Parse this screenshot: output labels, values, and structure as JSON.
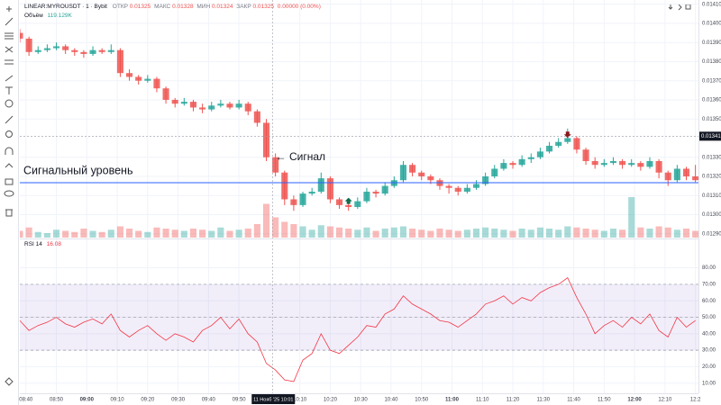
{
  "chart_data": {
    "type": "candlestick",
    "title": "LINEAR:MYROUSDT · 1 · Bybit",
    "legend": [
      {
        "label": "ОТКР",
        "value": 0.01325
      },
      {
        "label": "МАКС",
        "value": 0.01328
      },
      {
        "label": "МИН",
        "value": 0.01324
      },
      {
        "label": "ЗАКР",
        "value": 0.01325
      }
    ],
    "change": "0.00000 (0.00%)",
    "volume_label": "Объём",
    "volume_value": "119.129K",
    "up_color": "#26a69a",
    "down_color": "#ef5350",
    "x": [
      518,
      521,
      524,
      527,
      530,
      533,
      536,
      539,
      542,
      545,
      548,
      551,
      554,
      557,
      560,
      563,
      566,
      569,
      572,
      575,
      578,
      581,
      584,
      587,
      590,
      593,
      596,
      599,
      602,
      605,
      608,
      611,
      614,
      617,
      620,
      623,
      626,
      629,
      632,
      635,
      638,
      641,
      644,
      647,
      650,
      653,
      656,
      659,
      662,
      665,
      668,
      671,
      674,
      677,
      680,
      683,
      686,
      689,
      692,
      695,
      698,
      701,
      704,
      707,
      710,
      713,
      716,
      719,
      722,
      725,
      728,
      731,
      734,
      737,
      740
    ],
    "ohlc": [
      [
        0.01395,
        0.01397,
        0.0139,
        0.01392
      ],
      [
        0.01392,
        0.01393,
        0.01383,
        0.01385
      ],
      [
        0.01385,
        0.01388,
        0.01384,
        0.01386
      ],
      [
        0.01386,
        0.01389,
        0.01385,
        0.01387
      ],
      [
        0.01387,
        0.0139,
        0.01386,
        0.01388
      ],
      [
        0.01388,
        0.01389,
        0.01384,
        0.01386
      ],
      [
        0.01386,
        0.01387,
        0.01383,
        0.01385
      ],
      [
        0.01385,
        0.01386,
        0.01382,
        0.01384
      ],
      [
        0.01384,
        0.01388,
        0.01383,
        0.01386
      ],
      [
        0.01386,
        0.01387,
        0.01384,
        0.01385
      ],
      [
        0.01385,
        0.01389,
        0.01384,
        0.01386
      ],
      [
        0.01386,
        0.01387,
        0.01372,
        0.01374
      ],
      [
        0.01374,
        0.01376,
        0.0137,
        0.01372
      ],
      [
        0.01372,
        0.01373,
        0.01368,
        0.0137
      ],
      [
        0.0137,
        0.01373,
        0.01369,
        0.01371
      ],
      [
        0.01371,
        0.01372,
        0.01364,
        0.01366
      ],
      [
        0.01366,
        0.01367,
        0.01358,
        0.0136
      ],
      [
        0.0136,
        0.01361,
        0.01356,
        0.01358
      ],
      [
        0.01358,
        0.01361,
        0.01357,
        0.01359
      ],
      [
        0.01359,
        0.0136,
        0.01354,
        0.01356
      ],
      [
        0.01356,
        0.01358,
        0.01353,
        0.01355
      ],
      [
        0.01355,
        0.01359,
        0.01354,
        0.01357
      ],
      [
        0.01357,
        0.0136,
        0.01356,
        0.01358
      ],
      [
        0.01358,
        0.01359,
        0.01355,
        0.01356
      ],
      [
        0.01356,
        0.0136,
        0.01355,
        0.01358
      ],
      [
        0.01358,
        0.01359,
        0.01352,
        0.01354
      ],
      [
        0.01354,
        0.01355,
        0.01346,
        0.01348
      ],
      [
        0.01348,
        0.0135,
        0.01328,
        0.0133
      ],
      [
        0.0133,
        0.01332,
        0.0132,
        0.01322
      ],
      [
        0.01322,
        0.01323,
        0.01305,
        0.01308
      ],
      [
        0.01308,
        0.0131,
        0.01302,
        0.01305
      ],
      [
        0.01305,
        0.01312,
        0.01304,
        0.01311
      ],
      [
        0.01311,
        0.01314,
        0.0131,
        0.01312
      ],
      [
        0.01312,
        0.01322,
        0.01311,
        0.01319
      ],
      [
        0.01319,
        0.0132,
        0.01306,
        0.01308
      ],
      [
        0.01308,
        0.01309,
        0.01303,
        0.01305
      ],
      [
        0.01305,
        0.01306,
        0.01302,
        0.01304
      ],
      [
        0.01304,
        0.01309,
        0.01303,
        0.01307
      ],
      [
        0.01307,
        0.01314,
        0.01306,
        0.01312
      ],
      [
        0.01312,
        0.01313,
        0.01309,
        0.01311
      ],
      [
        0.01311,
        0.01317,
        0.0131,
        0.01315
      ],
      [
        0.01315,
        0.0132,
        0.01314,
        0.01318
      ],
      [
        0.01318,
        0.01328,
        0.01317,
        0.01326
      ],
      [
        0.01326,
        0.01327,
        0.0132,
        0.01322
      ],
      [
        0.01322,
        0.01323,
        0.01318,
        0.0132
      ],
      [
        0.0132,
        0.01321,
        0.01316,
        0.01318
      ],
      [
        0.01318,
        0.01319,
        0.01313,
        0.01315
      ],
      [
        0.01315,
        0.01316,
        0.01311,
        0.01314
      ],
      [
        0.01314,
        0.01315,
        0.0131,
        0.01312
      ],
      [
        0.01312,
        0.01316,
        0.01311,
        0.01314
      ],
      [
        0.01314,
        0.01318,
        0.01313,
        0.01316
      ],
      [
        0.01316,
        0.01322,
        0.01315,
        0.0132
      ],
      [
        0.0132,
        0.01326,
        0.01319,
        0.01324
      ],
      [
        0.01324,
        0.01329,
        0.01323,
        0.01327
      ],
      [
        0.01327,
        0.01328,
        0.01324,
        0.01326
      ],
      [
        0.01326,
        0.01331,
        0.01325,
        0.01329
      ],
      [
        0.01329,
        0.01332,
        0.01327,
        0.0133
      ],
      [
        0.0133,
        0.01335,
        0.01329,
        0.01333
      ],
      [
        0.01333,
        0.01338,
        0.01332,
        0.01336
      ],
      [
        0.01336,
        0.0134,
        0.01335,
        0.01338
      ],
      [
        0.01338,
        0.01345,
        0.01337,
        0.0134
      ],
      [
        0.0134,
        0.01341,
        0.01332,
        0.01334
      ],
      [
        0.01334,
        0.01335,
        0.01326,
        0.01328
      ],
      [
        0.01328,
        0.0133,
        0.01324,
        0.01326
      ],
      [
        0.01326,
        0.01329,
        0.01325,
        0.01327
      ],
      [
        0.01327,
        0.0133,
        0.01326,
        0.01328
      ],
      [
        0.01328,
        0.01329,
        0.01324,
        0.01326
      ],
      [
        0.01326,
        0.01329,
        0.01325,
        0.01327
      ],
      [
        0.01327,
        0.01328,
        0.01323,
        0.01325
      ],
      [
        0.01325,
        0.0133,
        0.01324,
        0.01328
      ],
      [
        0.01328,
        0.01329,
        0.01319,
        0.01322
      ],
      [
        0.01322,
        0.01323,
        0.01315,
        0.01318
      ],
      [
        0.01318,
        0.01326,
        0.01317,
        0.01324
      ],
      [
        0.01324,
        0.01325,
        0.01318,
        0.0132
      ],
      [
        0.0132,
        0.01326,
        0.01317,
        0.01318
      ]
    ],
    "volume": [
      300000,
      450000,
      250000,
      200000,
      350000,
      300000,
      250000,
      400000,
      300000,
      250000,
      350000,
      500000,
      400000,
      300000,
      250000,
      450000,
      400000,
      350000,
      300000,
      400000,
      350000,
      300000,
      450000,
      300000,
      350000,
      400000,
      600000,
      1500000,
      900000,
      700000,
      600000,
      500000,
      350000,
      550000,
      500000,
      450000,
      400000,
      350000,
      450000,
      300000,
      400000,
      450000,
      500000,
      400000,
      350000,
      300000,
      400000,
      350000,
      300000,
      350000,
      400000,
      450000,
      400000,
      350000,
      300000,
      400000,
      350000,
      450000,
      400000,
      350000,
      500000,
      450000,
      400000,
      350000,
      300000,
      400000,
      350000,
      1800000,
      450000,
      400000,
      500000,
      450000,
      350000,
      400000,
      300000
    ],
    "xlim": [
      518,
      741
    ],
    "xticks": [
      {
        "value": 520,
        "label": "08:40"
      },
      {
        "value": 530,
        "label": "08:50"
      },
      {
        "value": 540,
        "label": "09:00"
      },
      {
        "value": 550,
        "label": "09:10"
      },
      {
        "value": 560,
        "label": "09:20"
      },
      {
        "value": 570,
        "label": "09:30"
      },
      {
        "value": 580,
        "label": "09:40"
      },
      {
        "value": 590,
        "label": "09:50"
      },
      {
        "value": 610,
        "label": "10:10"
      },
      {
        "value": 620,
        "label": "10:20"
      },
      {
        "value": 630,
        "label": "10:30"
      },
      {
        "value": 640,
        "label": "10:40"
      },
      {
        "value": 650,
        "label": "10:50"
      },
      {
        "value": 660,
        "label": "11:00"
      },
      {
        "value": 670,
        "label": "11:10"
      },
      {
        "value": 680,
        "label": "11:20"
      },
      {
        "value": 690,
        "label": "11:30"
      },
      {
        "value": 700,
        "label": "11:40"
      },
      {
        "value": 710,
        "label": "11:50"
      },
      {
        "value": 720,
        "label": "12:00"
      },
      {
        "value": 730,
        "label": "12:10"
      },
      {
        "value": 740,
        "label": "12:2"
      }
    ],
    "ylim": [
      0.01288,
      0.014122
    ],
    "yticks": [
      {
        "value": 0.0141,
        "label": "0.01410"
      },
      {
        "value": 0.014,
        "label": "0.01400"
      },
      {
        "value": 0.0139,
        "label": "0.01390"
      },
      {
        "value": 0.0138,
        "label": "0.01380"
      },
      {
        "value": 0.0137,
        "label": "0.01370"
      },
      {
        "value": 0.0136,
        "label": "0.01360"
      },
      {
        "value": 0.0135,
        "label": "0.01350"
      },
      {
        "value": 0.0133,
        "label": "0.01330"
      },
      {
        "value": 0.0132,
        "label": "0.01320"
      },
      {
        "value": 0.0131,
        "label": "0.01310"
      },
      {
        "value": 0.013,
        "label": "0.01300"
      },
      {
        "value": 0.0129,
        "label": "0.01290"
      }
    ],
    "grid": true,
    "crosshair": {
      "x": {
        "value": 601,
        "label": "11 Нояб '25  10:01"
      },
      "y": 0.01341
    },
    "signal_level": {
      "label": "Сигнальный уровень",
      "value": 0.013167,
      "color": "#2962ff"
    },
    "signal_note": {
      "label": "← Сигнал",
      "x": 602,
      "y": 0.0133
    },
    "markers": [
      {
        "x": 626,
        "y": 0.01307,
        "direction": "up",
        "color": "#0b6e4f"
      },
      {
        "x": 698,
        "y": 0.01342,
        "direction": "down",
        "color": "#8b1a1a"
      }
    ],
    "rsi": {
      "name": "RSI 14",
      "value": 16.08,
      "color": "#f23645",
      "band_color": "#7e57c2",
      "values": [
        48,
        42,
        45,
        47,
        50,
        46,
        44,
        47,
        49,
        46,
        52,
        42,
        38,
        42,
        45,
        40,
        36,
        40,
        38,
        35,
        42,
        45,
        50,
        43,
        49,
        40,
        35,
        22,
        18,
        12,
        11,
        24,
        28,
        40,
        30,
        28,
        33,
        38,
        45,
        44,
        52,
        55,
        63,
        58,
        55,
        52,
        48,
        47,
        44,
        48,
        52,
        58,
        60,
        63,
        58,
        62,
        60,
        65,
        68,
        70,
        74,
        62,
        52,
        40,
        45,
        48,
        44,
        50,
        46,
        52,
        42,
        38,
        50,
        44,
        48
      ],
      "ylim": [
        4.4,
        96.2
      ],
      "band": [
        30,
        70
      ],
      "midline": 50,
      "yticks": [
        {
          "value": 80,
          "label": "80.00"
        },
        {
          "value": 70,
          "label": "70.00"
        },
        {
          "value": 60,
          "label": "60.00"
        },
        {
          "value": 50,
          "label": "50.00"
        },
        {
          "value": 40,
          "label": "40.00"
        },
        {
          "value": 30,
          "label": "30.00"
        },
        {
          "value": 20,
          "label": "20.00"
        },
        {
          "value": 10,
          "label": "10.00"
        }
      ]
    }
  }
}
